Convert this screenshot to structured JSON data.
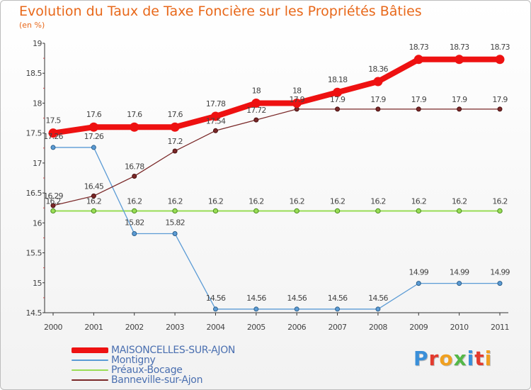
{
  "header": {
    "title": "Evolution du Taux de Taxe Foncière sur les Propriétés Bâties",
    "unit": "(en %)"
  },
  "brand": {
    "letters": [
      "P",
      "r",
      "o",
      "x",
      "i",
      "t",
      "i"
    ],
    "colors": [
      "#3a8fd9",
      "#e33b2e",
      "#f0a020",
      "#54b848",
      "#3a8fd9",
      "#e33b2e",
      "#f0a020"
    ]
  },
  "chart_data": {
    "type": "line",
    "title": "Evolution du Taux de Taxe Foncière sur les Propriétés Bâties",
    "ylabel": "(en %)",
    "xlabel": "",
    "x": [
      "2000",
      "2001",
      "2002",
      "2003",
      "2004",
      "2005",
      "2006",
      "2007",
      "2008",
      "2009",
      "2010",
      "2011"
    ],
    "ylim": [
      14.5,
      19
    ],
    "yticks": [
      "14.5",
      "15",
      "15.5",
      "16",
      "16.5",
      "17",
      "17.5",
      "18",
      "18.5",
      "19"
    ],
    "grid": false,
    "legend": "bottom-left",
    "series": [
      {
        "name": "MAISONCELLES-SUR-AJON",
        "color": "#ee1111",
        "values": [
          17.5,
          17.6,
          17.6,
          17.6,
          17.78,
          18,
          18,
          18.18,
          18.36,
          18.73,
          18.73,
          18.73
        ],
        "labels": [
          "17.5",
          "17.6",
          "17.6",
          "17.6",
          "17.78",
          "18",
          "18",
          "18.18",
          "18.36",
          "18.73",
          "18.73",
          "18.73"
        ]
      },
      {
        "name": "Montigny",
        "color": "#5b9bd5",
        "values": [
          17.26,
          17.26,
          15.82,
          15.82,
          14.56,
          14.56,
          14.56,
          14.56,
          14.56,
          14.99,
          14.99,
          14.99
        ],
        "labels": [
          "17.26",
          "17.26",
          "15.82",
          "15.82",
          "14.56",
          "14.56",
          "14.56",
          "14.56",
          "14.56",
          "14.99",
          "14.99",
          "14.99"
        ]
      },
      {
        "name": "Préaux-Bocage",
        "color": "#99dd55",
        "values": [
          16.2,
          16.2,
          16.2,
          16.2,
          16.2,
          16.2,
          16.2,
          16.2,
          16.2,
          16.2,
          16.2,
          16.2
        ],
        "labels": [
          "16.2",
          "16.2",
          "16.2",
          "16.2",
          "16.2",
          "16.2",
          "16.2",
          "16.2",
          "16.2",
          "16.2",
          "16.2",
          "16.2"
        ]
      },
      {
        "name": "Banneville-sur-Ajon",
        "color": "#7a2828",
        "values": [
          16.29,
          16.45,
          16.78,
          17.2,
          17.54,
          17.72,
          17.9,
          17.9,
          17.9,
          17.9,
          17.9,
          17.9
        ],
        "labels": [
          "16.29",
          "16.45",
          "16.78",
          "17.2",
          "17.54",
          "17.72",
          "17.9",
          "17.9",
          "17.9",
          "17.9",
          "17.9",
          "17.9"
        ]
      }
    ]
  }
}
